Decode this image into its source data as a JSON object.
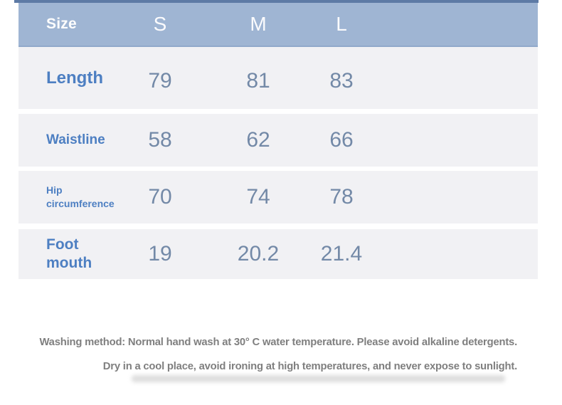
{
  "table": {
    "header": {
      "label": "Size",
      "cols": [
        "S",
        "M",
        "L"
      ]
    },
    "rows": [
      {
        "label": "Length",
        "values": [
          "79",
          "81",
          "83"
        ]
      },
      {
        "label": "Waistline",
        "values": [
          "58",
          "62",
          "66"
        ]
      },
      {
        "label": "Hip circumference",
        "values": [
          "70",
          "74",
          "78"
        ]
      },
      {
        "label": "Foot mouth",
        "values": [
          "19",
          "20.2",
          "21.4"
        ]
      }
    ]
  },
  "care": {
    "line1": "Washing method: Normal hand wash at 30° C water temperature. Please avoid alkaline detergents.",
    "line2": "Dry in a cool place, avoid ironing at high temperatures, and never expose to sunlight."
  },
  "colors": {
    "header_bg": "#9fb5d3",
    "header_text": "#fdfdfd",
    "top_line": "#5d7aa5",
    "row_bg": "#f1f1f4",
    "label_blue": "#4d7fc2",
    "value_blue_gray": "#7389a7",
    "care_text_gray": "#7f7f7f"
  },
  "chart_data": {
    "type": "table",
    "title": "Size",
    "columns": [
      "Size",
      "S",
      "M",
      "L"
    ],
    "rows": [
      [
        "Length",
        79,
        81,
        83
      ],
      [
        "Waistline",
        58,
        62,
        66
      ],
      [
        "Hip circumference",
        70,
        74,
        78
      ],
      [
        "Foot mouth",
        19,
        20.2,
        21.4
      ]
    ],
    "notes": [
      "Washing method: Normal hand wash at 30° C water temperature. Please avoid alkaline detergents.",
      "Dry in a cool place, avoid ironing at high temperatures, and never expose to sunlight."
    ],
    "layout": {
      "header_position": "top-row",
      "grid": "off",
      "row_striping": "uniform-light-gray"
    }
  }
}
